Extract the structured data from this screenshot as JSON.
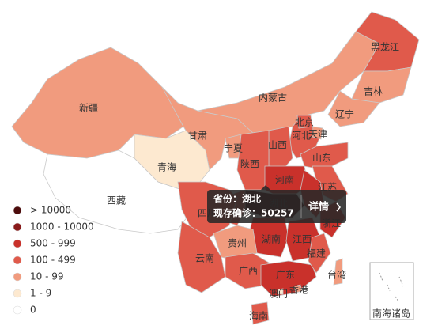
{
  "map": {
    "provinces": [
      {
        "name": "新疆",
        "color": "#f19b7e"
      },
      {
        "name": "西藏",
        "color": "#ffffff"
      },
      {
        "name": "甘肃",
        "color": "#f19b7e"
      },
      {
        "name": "青海",
        "color": "#fde9d0"
      },
      {
        "name": "内蒙古",
        "color": "#f19b7e"
      },
      {
        "name": "黑龙江",
        "color": "#e05a4b"
      },
      {
        "name": "吉林",
        "color": "#f19b7e"
      },
      {
        "name": "辽宁",
        "color": "#f19b7e"
      },
      {
        "name": "河北",
        "color": "#e05a4b"
      },
      {
        "name": "北京",
        "color": "#e05a4b"
      },
      {
        "name": "天津",
        "color": "#f19b7e"
      },
      {
        "name": "山西",
        "color": "#e05a4b"
      },
      {
        "name": "宁夏",
        "color": "#f19b7e"
      },
      {
        "name": "陕西",
        "color": "#e05a4b"
      },
      {
        "name": "山东",
        "color": "#e05a4b"
      },
      {
        "name": "河南",
        "color": "#c9312b"
      },
      {
        "name": "江苏",
        "color": "#e05a4b"
      },
      {
        "color": "#c9312b"
      },
      {
        "name": "湖北",
        "color": "#4d0c0c"
      },
      {
        "color": "#e05a4b"
      },
      {
        "name": "四川",
        "color": "#e05a4b"
      },
      {
        "name": "浙江",
        "color": "#c9312b"
      },
      {
        "name": "湖南",
        "color": "#c9312b"
      },
      {
        "name": "江西",
        "color": "#c9312b"
      },
      {
        "name": "贵州",
        "color": "#f19b7e"
      },
      {
        "name": "云南",
        "color": "#e05a4b"
      },
      {
        "name": "广西",
        "color": "#e05a4b"
      },
      {
        "name": "广东",
        "color": "#c9312b"
      },
      {
        "name": "福建",
        "color": "#e05a4b"
      },
      {
        "name": "台湾",
        "color": "#f19b7e"
      },
      {
        "name": "海南",
        "color": "#e05a4b"
      },
      {
        "name": "香港",
        "color": "#f19b7e"
      },
      {
        "name": "澳门",
        "color": "#fde9d0"
      }
    ],
    "inset_label": "南海诸岛"
  },
  "legend": {
    "items": [
      {
        "label": "> 10000",
        "color": "#4d0c0c"
      },
      {
        "label": "1000 - 10000",
        "color": "#8a1b1b"
      },
      {
        "label": "500 - 999",
        "color": "#c9312b"
      },
      {
        "label": "100 - 499",
        "color": "#e05a4b"
      },
      {
        "label": "10 - 99",
        "color": "#f19b7e"
      },
      {
        "label": "1 - 9",
        "color": "#fde9d0"
      },
      {
        "label": "0",
        "color": "#ffffff"
      }
    ]
  },
  "tooltip": {
    "lines": [
      "省份：湖北",
      "现存确诊：50257"
    ],
    "action": "详情"
  }
}
